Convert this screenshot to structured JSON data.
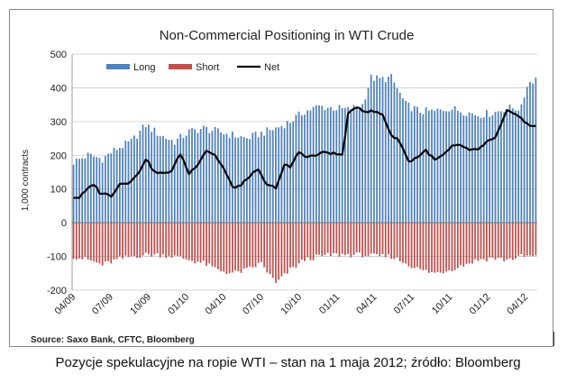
{
  "source_text": "Source: Saxo Bank, CFTC, Bloomberg",
  "caption": "Pozycje spekulacyjne na ropie WTI – stan na 1 maja 2012; źródło: Bloomberg",
  "colors": {
    "long": "#4f81bd",
    "short": "#c0504d",
    "net": "#000000",
    "grid": "#c8c8c8"
  },
  "chart_data": {
    "type": "bar",
    "title": "Non-Commercial Positioning in WTI Crude",
    "ylabel": "1,000 contracts",
    "xlabel": "",
    "ylim": [
      -200,
      500
    ],
    "yticks": [
      -200,
      -100,
      0,
      100,
      200,
      300,
      400,
      500
    ],
    "xtick_labels": [
      "04/09",
      "07/09",
      "10/09",
      "01/10",
      "04/10",
      "07/10",
      "10/10",
      "01/11",
      "04/11",
      "07/11",
      "10/11",
      "01/12",
      "04/12"
    ],
    "legend": {
      "placement": "top-left",
      "entries": [
        "Long",
        "Short",
        "Net"
      ]
    },
    "grid": true,
    "frequency": "weekly",
    "start_date": "2009-04-07",
    "end_date": "2012-05-01",
    "series": [
      {
        "name": "Long",
        "kind": "bar",
        "anchors": [
          [
            0,
            180
          ],
          [
            5,
            200
          ],
          [
            10,
            190
          ],
          [
            15,
            220
          ],
          [
            20,
            240
          ],
          [
            25,
            290
          ],
          [
            30,
            260
          ],
          [
            35,
            240
          ],
          [
            40,
            270
          ],
          [
            45,
            280
          ],
          [
            50,
            270
          ],
          [
            55,
            260
          ],
          [
            60,
            250
          ],
          [
            65,
            265
          ],
          [
            70,
            280
          ],
          [
            75,
            300
          ],
          [
            80,
            330
          ],
          [
            85,
            345
          ],
          [
            90,
            340
          ],
          [
            95,
            335
          ],
          [
            100,
            350
          ],
          [
            103,
            430
          ],
          [
            106,
            425
          ],
          [
            110,
            430
          ],
          [
            115,
            350
          ],
          [
            120,
            330
          ],
          [
            125,
            330
          ],
          [
            130,
            340
          ],
          [
            135,
            330
          ],
          [
            140,
            320
          ],
          [
            145,
            325
          ],
          [
            150,
            340
          ],
          [
            155,
            340
          ],
          [
            157,
            410
          ],
          [
            160,
            430
          ],
          [
            164,
            380
          ],
          [
            164,
            370
          ]
        ]
      },
      {
        "name": "Short",
        "kind": "bar",
        "anchors": [
          [
            0,
            -100
          ],
          [
            5,
            -110
          ],
          [
            10,
            -125
          ],
          [
            15,
            -110
          ],
          [
            20,
            -100
          ],
          [
            25,
            -95
          ],
          [
            30,
            -95
          ],
          [
            35,
            -100
          ],
          [
            40,
            -110
          ],
          [
            45,
            -120
          ],
          [
            50,
            -140
          ],
          [
            55,
            -150
          ],
          [
            60,
            -140
          ],
          [
            65,
            -120
          ],
          [
            70,
            -180
          ],
          [
            75,
            -140
          ],
          [
            80,
            -110
          ],
          [
            85,
            -100
          ],
          [
            90,
            -95
          ],
          [
            95,
            -95
          ],
          [
            100,
            -95
          ],
          [
            105,
            -100
          ],
          [
            110,
            -100
          ],
          [
            115,
            -120
          ],
          [
            120,
            -140
          ],
          [
            125,
            -150
          ],
          [
            130,
            -140
          ],
          [
            135,
            -125
          ],
          [
            140,
            -110
          ],
          [
            145,
            -105
          ],
          [
            150,
            -110
          ],
          [
            155,
            -100
          ],
          [
            160,
            -100
          ],
          [
            164,
            -100
          ]
        ]
      },
      {
        "name": "Net",
        "kind": "line",
        "anchors": [
          [
            0,
            75
          ],
          [
            2,
            75
          ],
          [
            5,
            100
          ],
          [
            7,
            115
          ],
          [
            9,
            90
          ],
          [
            11,
            85
          ],
          [
            13,
            80
          ],
          [
            16,
            115
          ],
          [
            19,
            120
          ],
          [
            22,
            140
          ],
          [
            25,
            190
          ],
          [
            28,
            150
          ],
          [
            31,
            145
          ],
          [
            34,
            155
          ],
          [
            37,
            205
          ],
          [
            40,
            145
          ],
          [
            43,
            175
          ],
          [
            46,
            215
          ],
          [
            49,
            200
          ],
          [
            52,
            160
          ],
          [
            55,
            105
          ],
          [
            58,
            110
          ],
          [
            61,
            140
          ],
          [
            64,
            155
          ],
          [
            67,
            110
          ],
          [
            70,
            105
          ],
          [
            73,
            170
          ],
          [
            75,
            165
          ],
          [
            78,
            210
          ],
          [
            81,
            195
          ],
          [
            84,
            200
          ],
          [
            87,
            210
          ],
          [
            90,
            205
          ],
          [
            93,
            200
          ],
          [
            95,
            320
          ],
          [
            98,
            345
          ],
          [
            101,
            330
          ],
          [
            104,
            330
          ],
          [
            107,
            320
          ],
          [
            110,
            260
          ],
          [
            113,
            240
          ],
          [
            116,
            180
          ],
          [
            119,
            195
          ],
          [
            122,
            215
          ],
          [
            125,
            185
          ],
          [
            128,
            200
          ],
          [
            131,
            225
          ],
          [
            134,
            230
          ],
          [
            137,
            215
          ],
          [
            140,
            215
          ],
          [
            143,
            240
          ],
          [
            146,
            250
          ],
          [
            150,
            330
          ],
          [
            153,
            325
          ],
          [
            156,
            300
          ],
          [
            158,
            285
          ],
          [
            161,
            290
          ],
          [
            164,
            295
          ]
        ]
      }
    ]
  }
}
